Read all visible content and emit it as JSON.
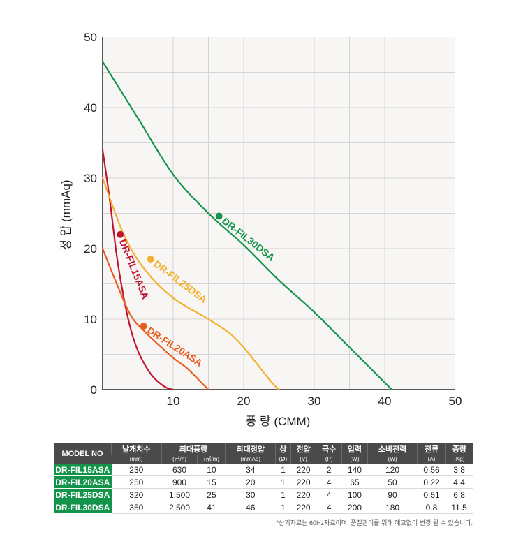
{
  "chart_data": {
    "type": "line",
    "xlabel": "풍 량 (CMM)",
    "ylabel": "정 압 (mmAq)",
    "xlim": [
      0,
      50
    ],
    "ylim": [
      0,
      50
    ],
    "xticks": [
      "10",
      "20",
      "30",
      "40",
      "50"
    ],
    "yticks": [
      "0",
      "10",
      "20",
      "30",
      "40",
      "50"
    ],
    "grid": true,
    "series": [
      {
        "name": "DR-FIL15ASA",
        "color": "#c0152f",
        "x": [
          0,
          1,
          2,
          3,
          4,
          5,
          6,
          7,
          8,
          9,
          10
        ],
        "y": [
          34,
          27,
          19,
          13,
          8.5,
          5.5,
          3.5,
          2,
          1,
          0.3,
          0
        ],
        "marker": [
          2.5,
          22
        ]
      },
      {
        "name": "DR-FIL20ASA",
        "color": "#e85d1e",
        "x": [
          0,
          2,
          4,
          6,
          8,
          10,
          12,
          14,
          15
        ],
        "y": [
          20,
          15,
          10.5,
          8.2,
          6.3,
          4.5,
          3,
          1,
          0
        ],
        "marker": [
          5.8,
          9
        ]
      },
      {
        "name": "DR-FIL25DSA",
        "color": "#f4b02c",
        "x": [
          0,
          3,
          6,
          10,
          15,
          18,
          20,
          22,
          24,
          25
        ],
        "y": [
          30,
          22,
          17,
          13,
          10,
          8,
          6,
          3.5,
          1,
          0
        ],
        "marker": [
          6.8,
          18.5
        ]
      },
      {
        "name": "DR-FIL30DSA",
        "color": "#13944a",
        "x": [
          0,
          5,
          10,
          15,
          20,
          25,
          30,
          35,
          38,
          41
        ],
        "y": [
          46.5,
          38.5,
          30.5,
          25,
          20.5,
          15.5,
          11,
          6,
          3,
          0
        ],
        "marker": [
          16.5,
          24.6
        ]
      }
    ]
  },
  "table": {
    "headers": [
      {
        "label": "MODEL NO",
        "sub": ""
      },
      {
        "label": "날개치수",
        "sub": "(mm)"
      },
      {
        "label": "최대풍량",
        "sub": "(㎥/h)"
      },
      {
        "label": "",
        "sub": "(㎥/m)"
      },
      {
        "label": "최대정압",
        "sub": "(mmAq)"
      },
      {
        "label": "상",
        "sub": "(Ø)"
      },
      {
        "label": "전압",
        "sub": "(V)"
      },
      {
        "label": "극수",
        "sub": "(P)"
      },
      {
        "label": "입력",
        "sub": "(W)"
      },
      {
        "label": "소비전력",
        "sub": "(W)"
      },
      {
        "label": "전류",
        "sub": "(A)"
      },
      {
        "label": "중량",
        "sub": "(Kg)"
      }
    ],
    "rows": [
      [
        "DR-FIL15ASA",
        "230",
        "630",
        "10",
        "34",
        "1",
        "220",
        "2",
        "140",
        "120",
        "0.56",
        "3.8"
      ],
      [
        "DR-FIL20ASA",
        "250",
        "900",
        "15",
        "20",
        "1",
        "220",
        "4",
        "65",
        "50",
        "0.22",
        "4.4"
      ],
      [
        "DR-FIL25DSA",
        "320",
        "1,500",
        "25",
        "30",
        "1",
        "220",
        "4",
        "100",
        "90",
        "0.51",
        "6.8"
      ],
      [
        "DR-FIL30DSA",
        "350",
        "2,500",
        "41",
        "46",
        "1",
        "220",
        "4",
        "200",
        "180",
        "0.8",
        "11.5"
      ]
    ]
  },
  "footnote": "*상기자료는 60Hz자료이며, 품질관리를 위해 예고없이 변경 될 수 있습니다."
}
